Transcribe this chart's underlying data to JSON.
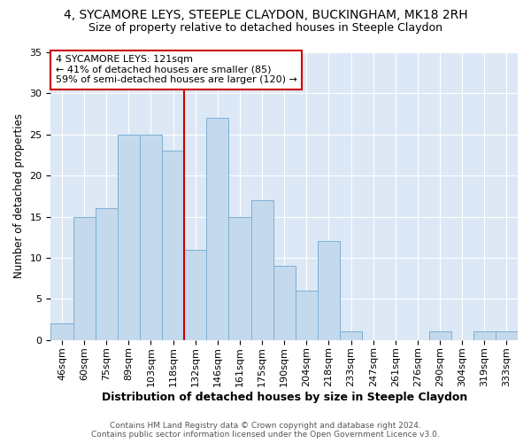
{
  "title1": "4, SYCAMORE LEYS, STEEPLE CLAYDON, BUCKINGHAM, MK18 2RH",
  "title2": "Size of property relative to detached houses in Steeple Claydon",
  "xlabel": "Distribution of detached houses by size in Steeple Claydon",
  "ylabel": "Number of detached properties",
  "categories": [
    "46sqm",
    "60sqm",
    "75sqm",
    "89sqm",
    "103sqm",
    "118sqm",
    "132sqm",
    "146sqm",
    "161sqm",
    "175sqm",
    "190sqm",
    "204sqm",
    "218sqm",
    "233sqm",
    "247sqm",
    "261sqm",
    "276sqm",
    "290sqm",
    "304sqm",
    "319sqm",
    "333sqm"
  ],
  "values": [
    2,
    15,
    16,
    25,
    25,
    23,
    11,
    27,
    15,
    17,
    9,
    6,
    12,
    1,
    0,
    0,
    0,
    1,
    0,
    1,
    1
  ],
  "bar_color": "#c5d9ed",
  "bar_edge_color": "#7aafd4",
  "annotation_text_lines": [
    "4 SYCAMORE LEYS: 121sqm",
    "← 41% of detached houses are smaller (85)",
    "59% of semi-detached houses are larger (120) →"
  ],
  "annotation_box_color": "#ffffff",
  "annotation_box_edge": "#cc0000",
  "vline_color": "#cc0000",
  "vline_x": 5.5,
  "ylim": [
    0,
    35
  ],
  "yticks": [
    0,
    5,
    10,
    15,
    20,
    25,
    30,
    35
  ],
  "background_color": "#dce8f5",
  "grid_color": "#ffffff",
  "fig_background": "#ffffff",
  "footer_line1": "Contains HM Land Registry data © Crown copyright and database right 2024.",
  "footer_line2": "Contains public sector information licensed under the Open Government Licence v3.0.",
  "title1_fontsize": 10,
  "title2_fontsize": 9,
  "xlabel_fontsize": 9,
  "ylabel_fontsize": 8.5,
  "tick_fontsize": 8,
  "annot_fontsize": 8
}
